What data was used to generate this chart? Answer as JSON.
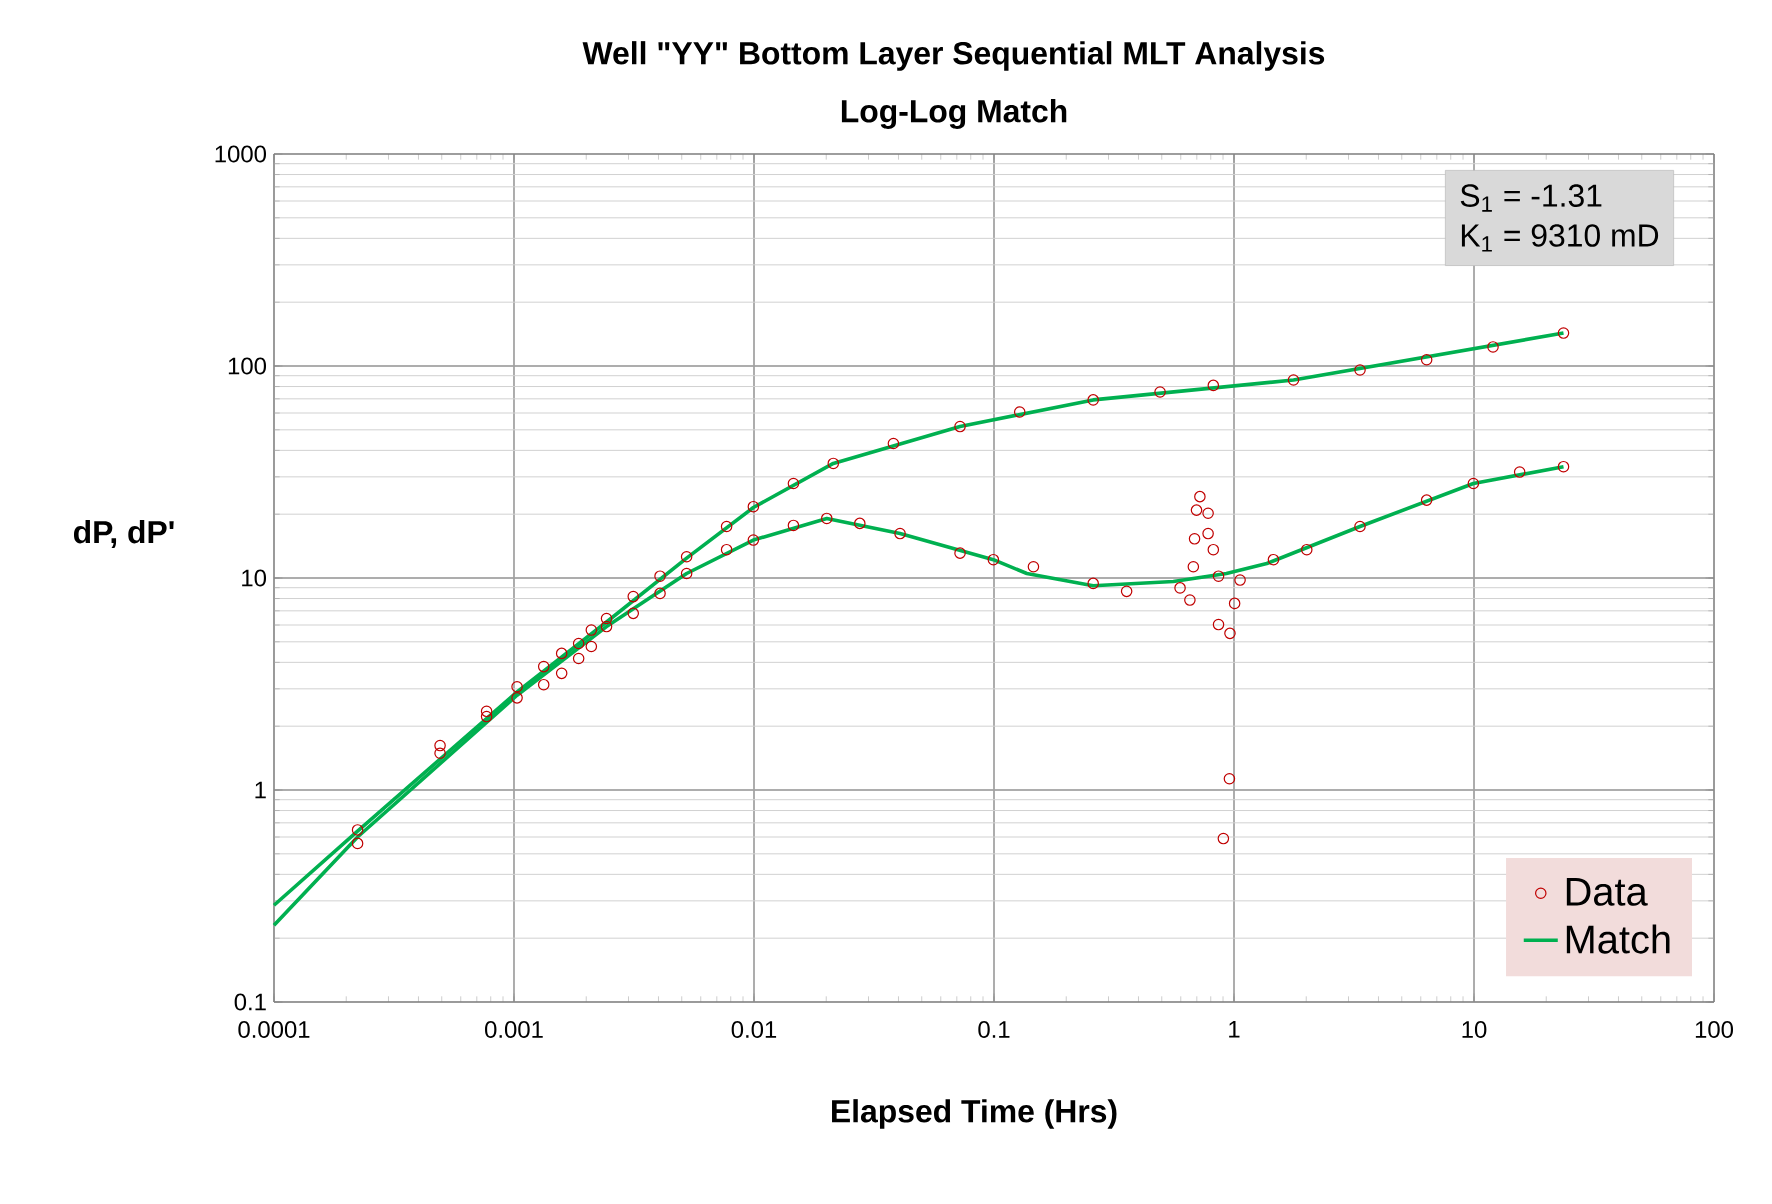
{
  "chart_data": {
    "type": "scatter",
    "title": "Well \"YY\" Bottom Layer Sequential  MLT Analysis",
    "subtitle": "Log-Log  Match",
    "xlabel": "Elapsed Time (Hrs)",
    "ylabel": "dP, dP'",
    "annotations": [
      "S$_{1}$ = -1.31",
      "K$_{1}$ = 9310 mD"
    ],
    "log": "xy",
    "grid": true,
    "legend": "bottom right",
    "marker": "circle",
    "xlim": [
      0.0001,
      100
    ],
    "ylim": [
      0.1,
      1000
    ],
    "xticks": [
      0.0001,
      0.001,
      0.01,
      0.1,
      1,
      10,
      100
    ],
    "yticks": [
      0.1,
      1,
      10,
      100,
      1000
    ],
    "series": [
      {
        "name": "Data",
        "color": "#c00000",
        "x": [
          0.000223,
          0.000492,
          0.000769,
          0.00103,
          0.00133,
          0.00158,
          0.00186,
          0.0021,
          0.00243,
          0.00314,
          0.00406,
          0.00524,
          0.00769,
          0.00994,
          0.0146,
          0.0214,
          0.0381,
          0.0722,
          0.128,
          0.259,
          0.492,
          0.82,
          1.77,
          3.35,
          6.35,
          12.0,
          23.6
        ],
        "values": [
          0.648,
          1.62,
          2.35,
          3.07,
          3.82,
          4.41,
          4.91,
          5.68,
          6.44,
          8.17,
          10.2,
          12.6,
          17.5,
          21.7,
          27.9,
          34.7,
          43.1,
          51.8,
          60.7,
          69.2,
          75.4,
          81.0,
          85.9,
          95.7,
          107,
          123,
          143
        ]
      },
      {
        "color": "#c00000",
        "x": [
          0.000223,
          0.000492,
          0.000769,
          0.00103,
          0.00133,
          0.00158,
          0.00186,
          0.0021,
          0.00243,
          0.00314,
          0.00406,
          0.00524,
          0.00769,
          0.00994,
          0.0146,
          0.0201,
          0.0276,
          0.0406,
          0.0722,
          0.0994,
          0.146,
          0.259,
          0.357,
          0.596,
          0.655,
          0.677,
          0.685,
          0.698,
          0.721,
          0.78,
          0.78,
          0.82,
          0.862,
          0.862,
          0.903,
          0.957,
          0.962,
          1.006,
          1.06,
          1.46,
          2.01,
          3.35,
          6.35,
          9.94,
          15.5,
          23.6
        ],
        "values": [
          0.56,
          1.49,
          2.22,
          2.72,
          3.14,
          3.55,
          4.17,
          4.75,
          5.9,
          6.81,
          8.46,
          10.5,
          13.6,
          15.1,
          17.7,
          19.1,
          18.1,
          16.2,
          13.1,
          12.2,
          11.3,
          9.43,
          8.65,
          8.98,
          7.87,
          11.3,
          15.3,
          20.9,
          24.2,
          20.2,
          16.2,
          13.6,
          10.2,
          6.03,
          0.59,
          1.13,
          5.48,
          7.59,
          9.78,
          12.2,
          13.6,
          17.5,
          23.3,
          27.9,
          31.6,
          33.5
        ]
      },
      {
        "name": "Match",
        "type": "line",
        "marker": "none",
        "color": "#00b050",
        "x": [
          0.0001,
          0.000223,
          0.00103,
          0.00243,
          0.00524,
          0.00994,
          0.0214,
          0.0722,
          0.259,
          1.77,
          23.6
        ],
        "values": [
          0.286,
          0.64,
          2.9,
          6.2,
          12.4,
          21.5,
          34.7,
          51.8,
          69.2,
          85.9,
          143
        ]
      },
      {
        "type": "line",
        "marker": "none",
        "color": "#00b050",
        "x": [
          0.0001,
          0.000223,
          0.00103,
          0.00243,
          0.00524,
          0.00994,
          0.0201,
          0.0406,
          0.0994,
          0.137,
          0.259,
          0.559,
          0.93,
          1.37,
          3.35,
          9.94,
          23.6
        ],
        "values": [
          0.23,
          0.6,
          2.8,
          5.9,
          10.5,
          15.1,
          19.1,
          16.2,
          12.2,
          10.5,
          9.2,
          9.63,
          10.5,
          11.7,
          17.5,
          27.9,
          33.5
        ]
      }
    ]
  }
}
